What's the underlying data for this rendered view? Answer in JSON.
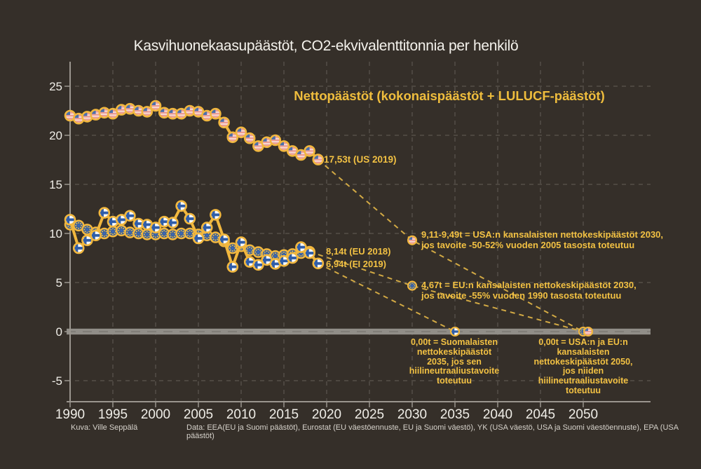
{
  "colors": {
    "background": "#352F29",
    "line_gold": "#F1B73E",
    "annotation_gold": "#F2C143",
    "title_white": "#F4F2EC",
    "tick_label": "#EFEDE7",
    "grid": "#5C564F",
    "axis": "#9A958E",
    "zero_band": "#918E88",
    "zero_band_dash": "#7C7972",
    "projection_dash": "#D2A944",
    "footer_text": "#D6D2CB",
    "us_flag_stripe": "#EC9A92",
    "us_flag_light": "#F6D8D2",
    "us_flag_blue": "#4C6FAC",
    "eu_flag_blue": "#31599F",
    "eu_star_gold": "#F5C84B",
    "fi_flag_white": "#F7F8F7",
    "fi_cross_blue": "#2F5DA9"
  },
  "chart_data": {
    "type": "line",
    "title": "Kasvihuonekaasupäästöt, CO2-ekvivalenttitonnia per henkilö",
    "subtitle": "Nettopäästöt (kokonaispäästöt + LULUCF-päästöt)",
    "xlim": [
      1988.5,
      2058
    ],
    "ylim": [
      -7.3,
      27.5
    ],
    "x_ticks": [
      1990,
      1995,
      2000,
      2005,
      2010,
      2015,
      2020,
      2025,
      2030,
      2035,
      2040,
      2045,
      2050
    ],
    "y_ticks": [
      -5,
      0,
      5,
      10,
      15,
      20,
      25
    ],
    "grid": true,
    "legend_position": "none",
    "series": [
      {
        "name": "USA",
        "marker": "us-flag",
        "start_year": 1990,
        "values": [
          22.0,
          21.7,
          21.9,
          22.1,
          22.3,
          22.2,
          22.6,
          22.7,
          22.5,
          22.4,
          23.0,
          22.3,
          22.2,
          22.2,
          22.5,
          22.4,
          22.0,
          22.2,
          21.3,
          19.8,
          20.3,
          19.7,
          18.9,
          19.3,
          19.5,
          18.9,
          18.4,
          18.0,
          18.4,
          17.53
        ]
      },
      {
        "name": "EU",
        "marker": "eu-flag",
        "start_year": 1990,
        "values": [
          10.9,
          10.8,
          10.4,
          10.1,
          10.0,
          10.2,
          10.3,
          10.1,
          10.0,
          9.9,
          9.9,
          10.0,
          9.9,
          10.0,
          10.0,
          9.9,
          9.8,
          9.6,
          9.2,
          8.5,
          8.7,
          8.3,
          8.1,
          7.9,
          7.7,
          7.8,
          7.9,
          8.0,
          8.14
        ]
      },
      {
        "name": "Suomi",
        "marker": "fi-flag",
        "start_year": 1990,
        "values": [
          11.4,
          8.5,
          9.3,
          9.8,
          12.1,
          11.2,
          11.4,
          11.8,
          11.0,
          10.9,
          10.6,
          11.2,
          11.1,
          12.8,
          11.5,
          9.5,
          10.6,
          11.9,
          9.4,
          6.6,
          9.1,
          7.1,
          6.8,
          7.3,
          6.9,
          7.2,
          7.5,
          8.6,
          8.0,
          6.94
        ]
      }
    ],
    "projections": [
      {
        "name": "USA-tavoite",
        "points": [
          [
            2019,
            17.53
          ],
          [
            2030,
            9.3
          ],
          [
            2050,
            0
          ]
        ]
      },
      {
        "name": "EU-tavoite",
        "points": [
          [
            2018,
            8.14
          ],
          [
            2030,
            4.67
          ],
          [
            2050,
            0
          ]
        ]
      },
      {
        "name": "Suomi-tavoite",
        "points": [
          [
            2019,
            6.94
          ],
          [
            2035,
            0
          ]
        ]
      }
    ],
    "target_markers": [
      {
        "marker": "us-flag",
        "x": 2030,
        "y": 9.3
      },
      {
        "marker": "eu-flag",
        "x": 2030,
        "y": 4.67
      },
      {
        "marker": "fi-flag",
        "x": 2035,
        "y": 0
      },
      {
        "marker": "eu-flag",
        "x": 2050,
        "y": 0
      },
      {
        "marker": "us-flag",
        "x": 2050,
        "y": 0,
        "dx": 7
      }
    ],
    "annotations": [
      {
        "id": "us-2019",
        "text": "17,53t (US 2019)"
      },
      {
        "id": "eu-2018",
        "text": "8,14t (EU 2018)"
      },
      {
        "id": "fi-2019",
        "text": "6,94t (FI 2019)"
      },
      {
        "id": "us-2030",
        "text": "9,11-9,49t = USA:n kansalaisten nettokeskipäästöt 2030,\njos tavoite -50-52% vuoden 2005 tasosta toteutuu"
      },
      {
        "id": "eu-2030",
        "text": "4,67t = EU:n kansalaisten nettokeskipäästöt 2030,\njos tavoite -55% vuoden 1990 tasosta toteutuu"
      },
      {
        "id": "fi-2035",
        "text": "0,00t = Suomalaisten\nnettokeskipäästöt\n2035, jos sen\nhiilineutraaliustavoite\ntoteutuu"
      },
      {
        "id": "both-2050",
        "text": "0,00t = USA:n ja EU:n\nkansalaisten\nnettokeskipäästöt 2050,\njos niiden\nhiilineutraaliustavoite\ntoteutuu"
      }
    ]
  },
  "footer": {
    "credit": "Kuva: Ville Seppälä",
    "source": "Data: EEA(EU ja Suomi päästöt), Eurostat (EU väestöennuste, EU ja Suomi väestö), YK (USA väestö, USA ja Suomi väestöennuste), EPA (USA päästöt)"
  }
}
